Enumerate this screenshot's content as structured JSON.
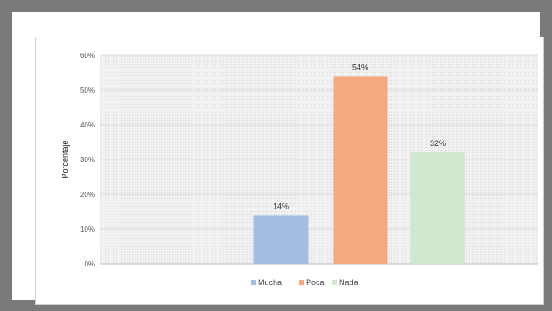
{
  "chart_data": {
    "type": "bar",
    "categories": [
      "Mucha",
      "Poca",
      "Nada"
    ],
    "values": [
      14,
      54,
      32
    ],
    "data_labels": [
      "14%",
      "54%",
      "32%"
    ],
    "ylabel": "Porcentaje",
    "xlabel": "",
    "ylim": [
      0,
      60
    ],
    "yticks": [
      "0%",
      "10%",
      "20%",
      "30%",
      "40%",
      "50%",
      "60%"
    ],
    "colors": [
      "#a4bde3",
      "#f4aa7e",
      "#cfe8cf"
    ],
    "grid": true,
    "legend": {
      "placement": "bottom",
      "entries": [
        "Mucha",
        "Poca",
        "Nada"
      ]
    }
  }
}
